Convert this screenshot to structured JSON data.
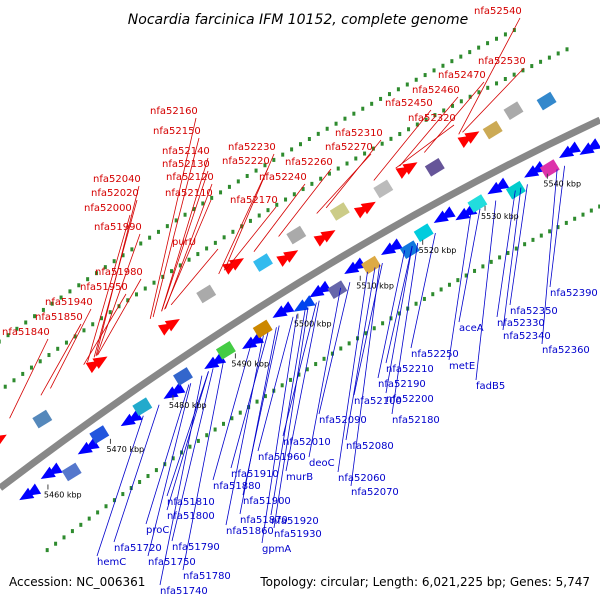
{
  "header": {
    "title": "Nocardia farcinica IFM 10152, complete genome"
  },
  "footer": {
    "accession": "Accession: NC_006361",
    "summary": "Topology: circular; Length: 6,021,225 bp; Genes: 5,747"
  },
  "colors": {
    "forward_label": "#d40000",
    "reverse_label": "#0000cc",
    "forward_arrow": "#ff0000",
    "reverse_arrow": "#0000ff",
    "backbone": "#888888",
    "dot": "#2e8b2e"
  },
  "scale_ticks": [
    "5460 kbp",
    "5470 kbp",
    "5480 kbp",
    "5490 kbp",
    "5500 kbp",
    "5510 kbp",
    "5520 kbp",
    "5530 kbp",
    "5540 kbp"
  ],
  "forward_labels": [
    "nfa52540",
    "nfa52530",
    "nfa52470",
    "nfa52460",
    "nfa52450",
    "nfa52320",
    "nfa52310",
    "nfa52160",
    "nfa52150",
    "nfa52230",
    "nfa52140",
    "nfa52220",
    "nfa52260",
    "nfa52270",
    "nfa52130",
    "nfa52120",
    "nfa52240",
    "nfa52040",
    "nfa52020",
    "nfa52110",
    "nfa52170",
    "nfa52000",
    "nfa51990",
    "purU",
    "nfa51980",
    "nfa51950",
    "nfa51940",
    "nfa51850",
    "nfa51840"
  ],
  "reverse_labels": [
    "nfa52390",
    "nfa52350",
    "nfa52330",
    "nfa52340",
    "nfa52360",
    "aceA",
    "nfa52250",
    "metE",
    "fadB5",
    "nfa52210",
    "nfa52190",
    "nfa52200",
    "nfa52100",
    "nfa52180",
    "nfa52090",
    "nfa52010",
    "nfa52080",
    "nfa51960",
    "deoC",
    "nfa51910",
    "murB",
    "nfa52060",
    "nfa51880",
    "nfa52070",
    "nfa51810",
    "nfa51900",
    "nfa51800",
    "nfa51870",
    "nfa51920",
    "proC",
    "nfa51860",
    "nfa51930",
    "nfa51790",
    "nfa51720",
    "gpmA",
    "hemC",
    "nfa51750",
    "nfa51780",
    "nfa51740"
  ]
}
